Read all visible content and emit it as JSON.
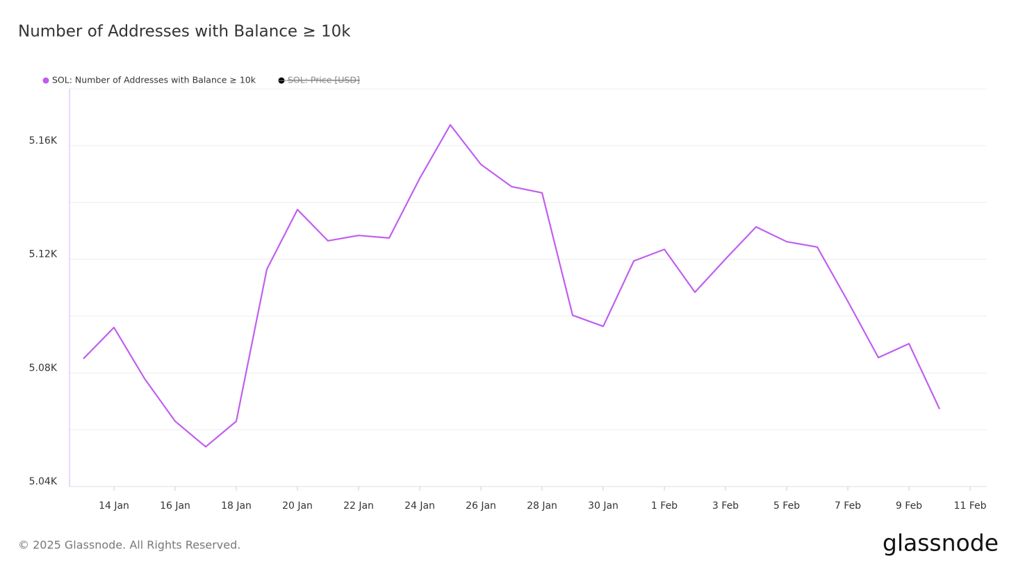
{
  "chart_data": {
    "type": "line",
    "title": "Number of Addresses with Balance ≥ 10k",
    "categories": [
      null,
      "14 Jan",
      null,
      "16 Jan",
      null,
      "18 Jan",
      null,
      "20 Jan",
      null,
      "22 Jan",
      null,
      "24 Jan",
      null,
      "26 Jan",
      null,
      "28 Jan",
      null,
      "30 Jan",
      null,
      "1 Feb",
      null,
      "3 Feb",
      null,
      "5 Feb",
      null,
      "7 Feb",
      null,
      "9 Feb",
      null,
      "11 Feb"
    ],
    "series": [
      {
        "name": "SOL: Number of Addresses with Balance ≥ 10k",
        "color": "#c05ef0",
        "values": [
          5085,
          5096,
          5078,
          5063,
          5054,
          5063,
          5116.5,
          5137.5,
          5126.5,
          5128.4,
          5127.5,
          5148.5,
          5167.3,
          5153.4,
          5145.6,
          5143.4,
          5100.3,
          5096.4,
          5119.4,
          5123.5,
          5108.4,
          5120.1,
          5131.4,
          5126.2,
          5124.3,
          5105.2,
          5085.4,
          5090.3,
          5067.3,
          null
        ]
      }
    ],
    "hidden_series": [
      {
        "name": "SOL: Price [USD]",
        "color": "#000000"
      }
    ],
    "ylim": [
      5040,
      5180
    ],
    "yticks": [
      {
        "value": 5040,
        "label": "5.04K"
      },
      {
        "value": 5080,
        "label": "5.08K"
      },
      {
        "value": 5120,
        "label": "5.12K"
      },
      {
        "value": 5160,
        "label": "5.16K"
      }
    ],
    "minor_yticks": [
      5060,
      5100,
      5140,
      5180
    ],
    "grid": true,
    "footer": "© 2025 Glassnode. All Rights Reserved.",
    "logo": "glassnode"
  }
}
